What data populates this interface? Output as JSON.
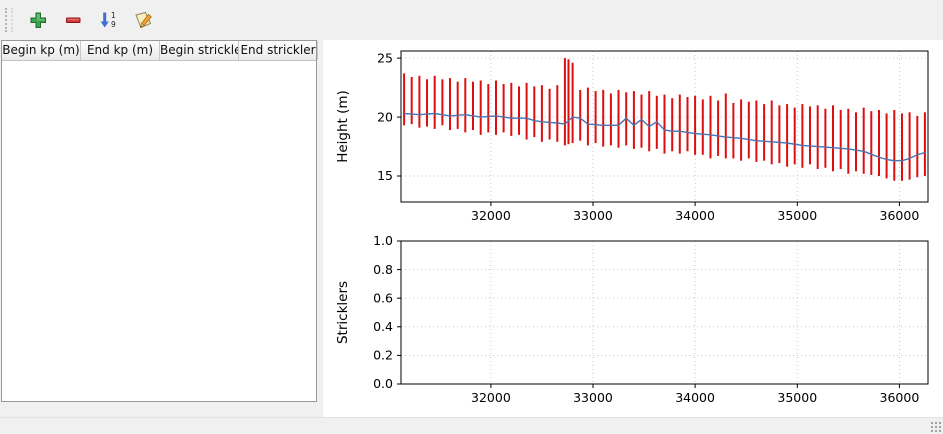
{
  "toolbar": {
    "buttons": [
      {
        "name": "add-row",
        "icon": "plus-icon",
        "color": "#3fa34d"
      },
      {
        "name": "remove-row",
        "icon": "minus-icon",
        "color": "#cc3333"
      },
      {
        "name": "sort-rows",
        "icon": "sort-numeric-icon",
        "color": "#3b6fd6",
        "digit_top": "1",
        "digit_bottom": "9"
      },
      {
        "name": "edit",
        "icon": "edit-pencil-icon",
        "color": "#f2a33c"
      }
    ]
  },
  "table": {
    "columns": [
      "Begin kp (m)",
      "End kp (m)",
      "Begin strickler",
      "End strickler"
    ],
    "rows": []
  },
  "chart_data": [
    {
      "type": "bar",
      "title": "",
      "xlabel": "",
      "ylabel": "Height (m)",
      "xlim": [
        31120,
        36280
      ],
      "ylim": [
        12.8,
        25.6
      ],
      "xticks": [
        32000,
        33000,
        34000,
        35000,
        36000
      ],
      "xtick_labels": [
        "32000",
        "33000",
        "34000",
        "35000",
        "36000"
      ],
      "yticks": [
        15,
        20,
        25
      ],
      "ytick_labels": [
        "15",
        "20",
        "25"
      ],
      "grid": true,
      "bar_color": "#dd0e0e",
      "line_color": "#4c72b0",
      "bars": [
        [
          31150,
          19.3,
          23.7
        ],
        [
          31225,
          19.4,
          23.4
        ],
        [
          31300,
          19.1,
          23.5
        ],
        [
          31375,
          19.2,
          23.2
        ],
        [
          31450,
          19.0,
          23.5
        ],
        [
          31525,
          19.3,
          23.2
        ],
        [
          31600,
          18.9,
          23.3
        ],
        [
          31675,
          19.0,
          23.0
        ],
        [
          31750,
          18.7,
          23.3
        ],
        [
          31825,
          18.9,
          23.0
        ],
        [
          31900,
          18.5,
          23.1
        ],
        [
          31975,
          18.7,
          22.8
        ],
        [
          32050,
          18.5,
          23.1
        ],
        [
          32125,
          18.7,
          22.8
        ],
        [
          32200,
          18.4,
          22.9
        ],
        [
          32275,
          18.5,
          22.6
        ],
        [
          32350,
          18.1,
          22.9
        ],
        [
          32425,
          18.3,
          22.6
        ],
        [
          32500,
          17.9,
          22.7
        ],
        [
          32575,
          18.1,
          22.4
        ],
        [
          32650,
          17.9,
          22.7
        ],
        [
          32725,
          17.6,
          25.0
        ],
        [
          32760,
          17.7,
          24.9
        ],
        [
          32800,
          17.8,
          24.6
        ],
        [
          32875,
          18.0,
          22.3
        ],
        [
          32950,
          17.6,
          22.5
        ],
        [
          33025,
          17.8,
          22.2
        ],
        [
          33100,
          17.5,
          22.3
        ],
        [
          33175,
          17.6,
          22.0
        ],
        [
          33250,
          17.4,
          22.3
        ],
        [
          33325,
          17.6,
          22.1
        ],
        [
          33400,
          17.3,
          22.2
        ],
        [
          33475,
          17.4,
          21.9
        ],
        [
          33550,
          17.1,
          22.2
        ],
        [
          33625,
          17.3,
          21.8
        ],
        [
          33700,
          16.9,
          21.9
        ],
        [
          33775,
          17.1,
          21.6
        ],
        [
          33850,
          16.9,
          21.9
        ],
        [
          33925,
          17.1,
          21.7
        ],
        [
          34000,
          16.8,
          21.8
        ],
        [
          34075,
          16.8,
          21.5
        ],
        [
          34150,
          16.5,
          21.8
        ],
        [
          34225,
          16.7,
          21.4
        ],
        [
          34300,
          16.5,
          22.0
        ],
        [
          34375,
          16.5,
          21.2
        ],
        [
          34450,
          16.3,
          21.5
        ],
        [
          34525,
          16.5,
          21.3
        ],
        [
          34600,
          16.2,
          21.4
        ],
        [
          34675,
          16.3,
          21.1
        ],
        [
          34750,
          16.0,
          21.4
        ],
        [
          34825,
          16.1,
          21.0
        ],
        [
          34900,
          15.8,
          21.1
        ],
        [
          34975,
          16.0,
          20.8
        ],
        [
          35050,
          15.7,
          21.1
        ],
        [
          35125,
          16.0,
          20.9
        ],
        [
          35200,
          15.6,
          21.0
        ],
        [
          35275,
          15.7,
          20.7
        ],
        [
          35350,
          15.4,
          21.0
        ],
        [
          35425,
          15.6,
          20.6
        ],
        [
          35500,
          15.2,
          20.7
        ],
        [
          35575,
          15.4,
          20.4
        ],
        [
          35650,
          15.2,
          20.8
        ],
        [
          35725,
          15.1,
          20.5
        ],
        [
          35800,
          15.0,
          20.6
        ],
        [
          35875,
          14.8,
          20.3
        ],
        [
          35950,
          14.6,
          20.6
        ],
        [
          36025,
          14.6,
          20.3
        ],
        [
          36100,
          14.7,
          20.4
        ],
        [
          36175,
          14.9,
          20.1
        ],
        [
          36250,
          15.0,
          20.4
        ]
      ],
      "line": [
        [
          31150,
          20.3
        ],
        [
          31300,
          20.2
        ],
        [
          31450,
          20.3
        ],
        [
          31600,
          20.1
        ],
        [
          31750,
          20.2
        ],
        [
          31900,
          20.0
        ],
        [
          32050,
          20.1
        ],
        [
          32200,
          19.9
        ],
        [
          32350,
          19.9
        ],
        [
          32425,
          19.7
        ],
        [
          32500,
          19.6
        ],
        [
          32650,
          19.5
        ],
        [
          32725,
          19.4
        ],
        [
          32800,
          20.0
        ],
        [
          32875,
          19.9
        ],
        [
          32950,
          19.4
        ],
        [
          33100,
          19.3
        ],
        [
          33250,
          19.3
        ],
        [
          33325,
          19.9
        ],
        [
          33400,
          19.3
        ],
        [
          33475,
          19.8
        ],
        [
          33550,
          19.2
        ],
        [
          33625,
          19.6
        ],
        [
          33700,
          18.9
        ],
        [
          33775,
          18.8
        ],
        [
          33850,
          18.8
        ],
        [
          33925,
          18.7
        ],
        [
          34000,
          18.6
        ],
        [
          34150,
          18.5
        ],
        [
          34300,
          18.3
        ],
        [
          34450,
          18.2
        ],
        [
          34600,
          18.0
        ],
        [
          34750,
          17.9
        ],
        [
          34900,
          17.8
        ],
        [
          35050,
          17.6
        ],
        [
          35200,
          17.5
        ],
        [
          35350,
          17.4
        ],
        [
          35500,
          17.3
        ],
        [
          35650,
          17.1
        ],
        [
          35800,
          16.6
        ],
        [
          35875,
          16.4
        ],
        [
          35950,
          16.3
        ],
        [
          36025,
          16.3
        ],
        [
          36100,
          16.5
        ],
        [
          36175,
          16.8
        ],
        [
          36250,
          17.0
        ]
      ]
    },
    {
      "type": "line",
      "title": "",
      "xlabel": "",
      "ylabel": "Stricklers",
      "xlim": [
        31120,
        36280
      ],
      "ylim": [
        0,
        1
      ],
      "xticks": [
        32000,
        33000,
        34000,
        35000,
        36000
      ],
      "xtick_labels": [
        "32000",
        "33000",
        "34000",
        "35000",
        "36000"
      ],
      "yticks": [
        0,
        0.2,
        0.4,
        0.6,
        0.8,
        1
      ],
      "ytick_labels": [
        "0.0",
        "0.2",
        "0.4",
        "0.6",
        "0.8",
        "1.0"
      ],
      "grid": true,
      "bars": [],
      "line": []
    }
  ],
  "statusbar": {
    "text": ""
  }
}
